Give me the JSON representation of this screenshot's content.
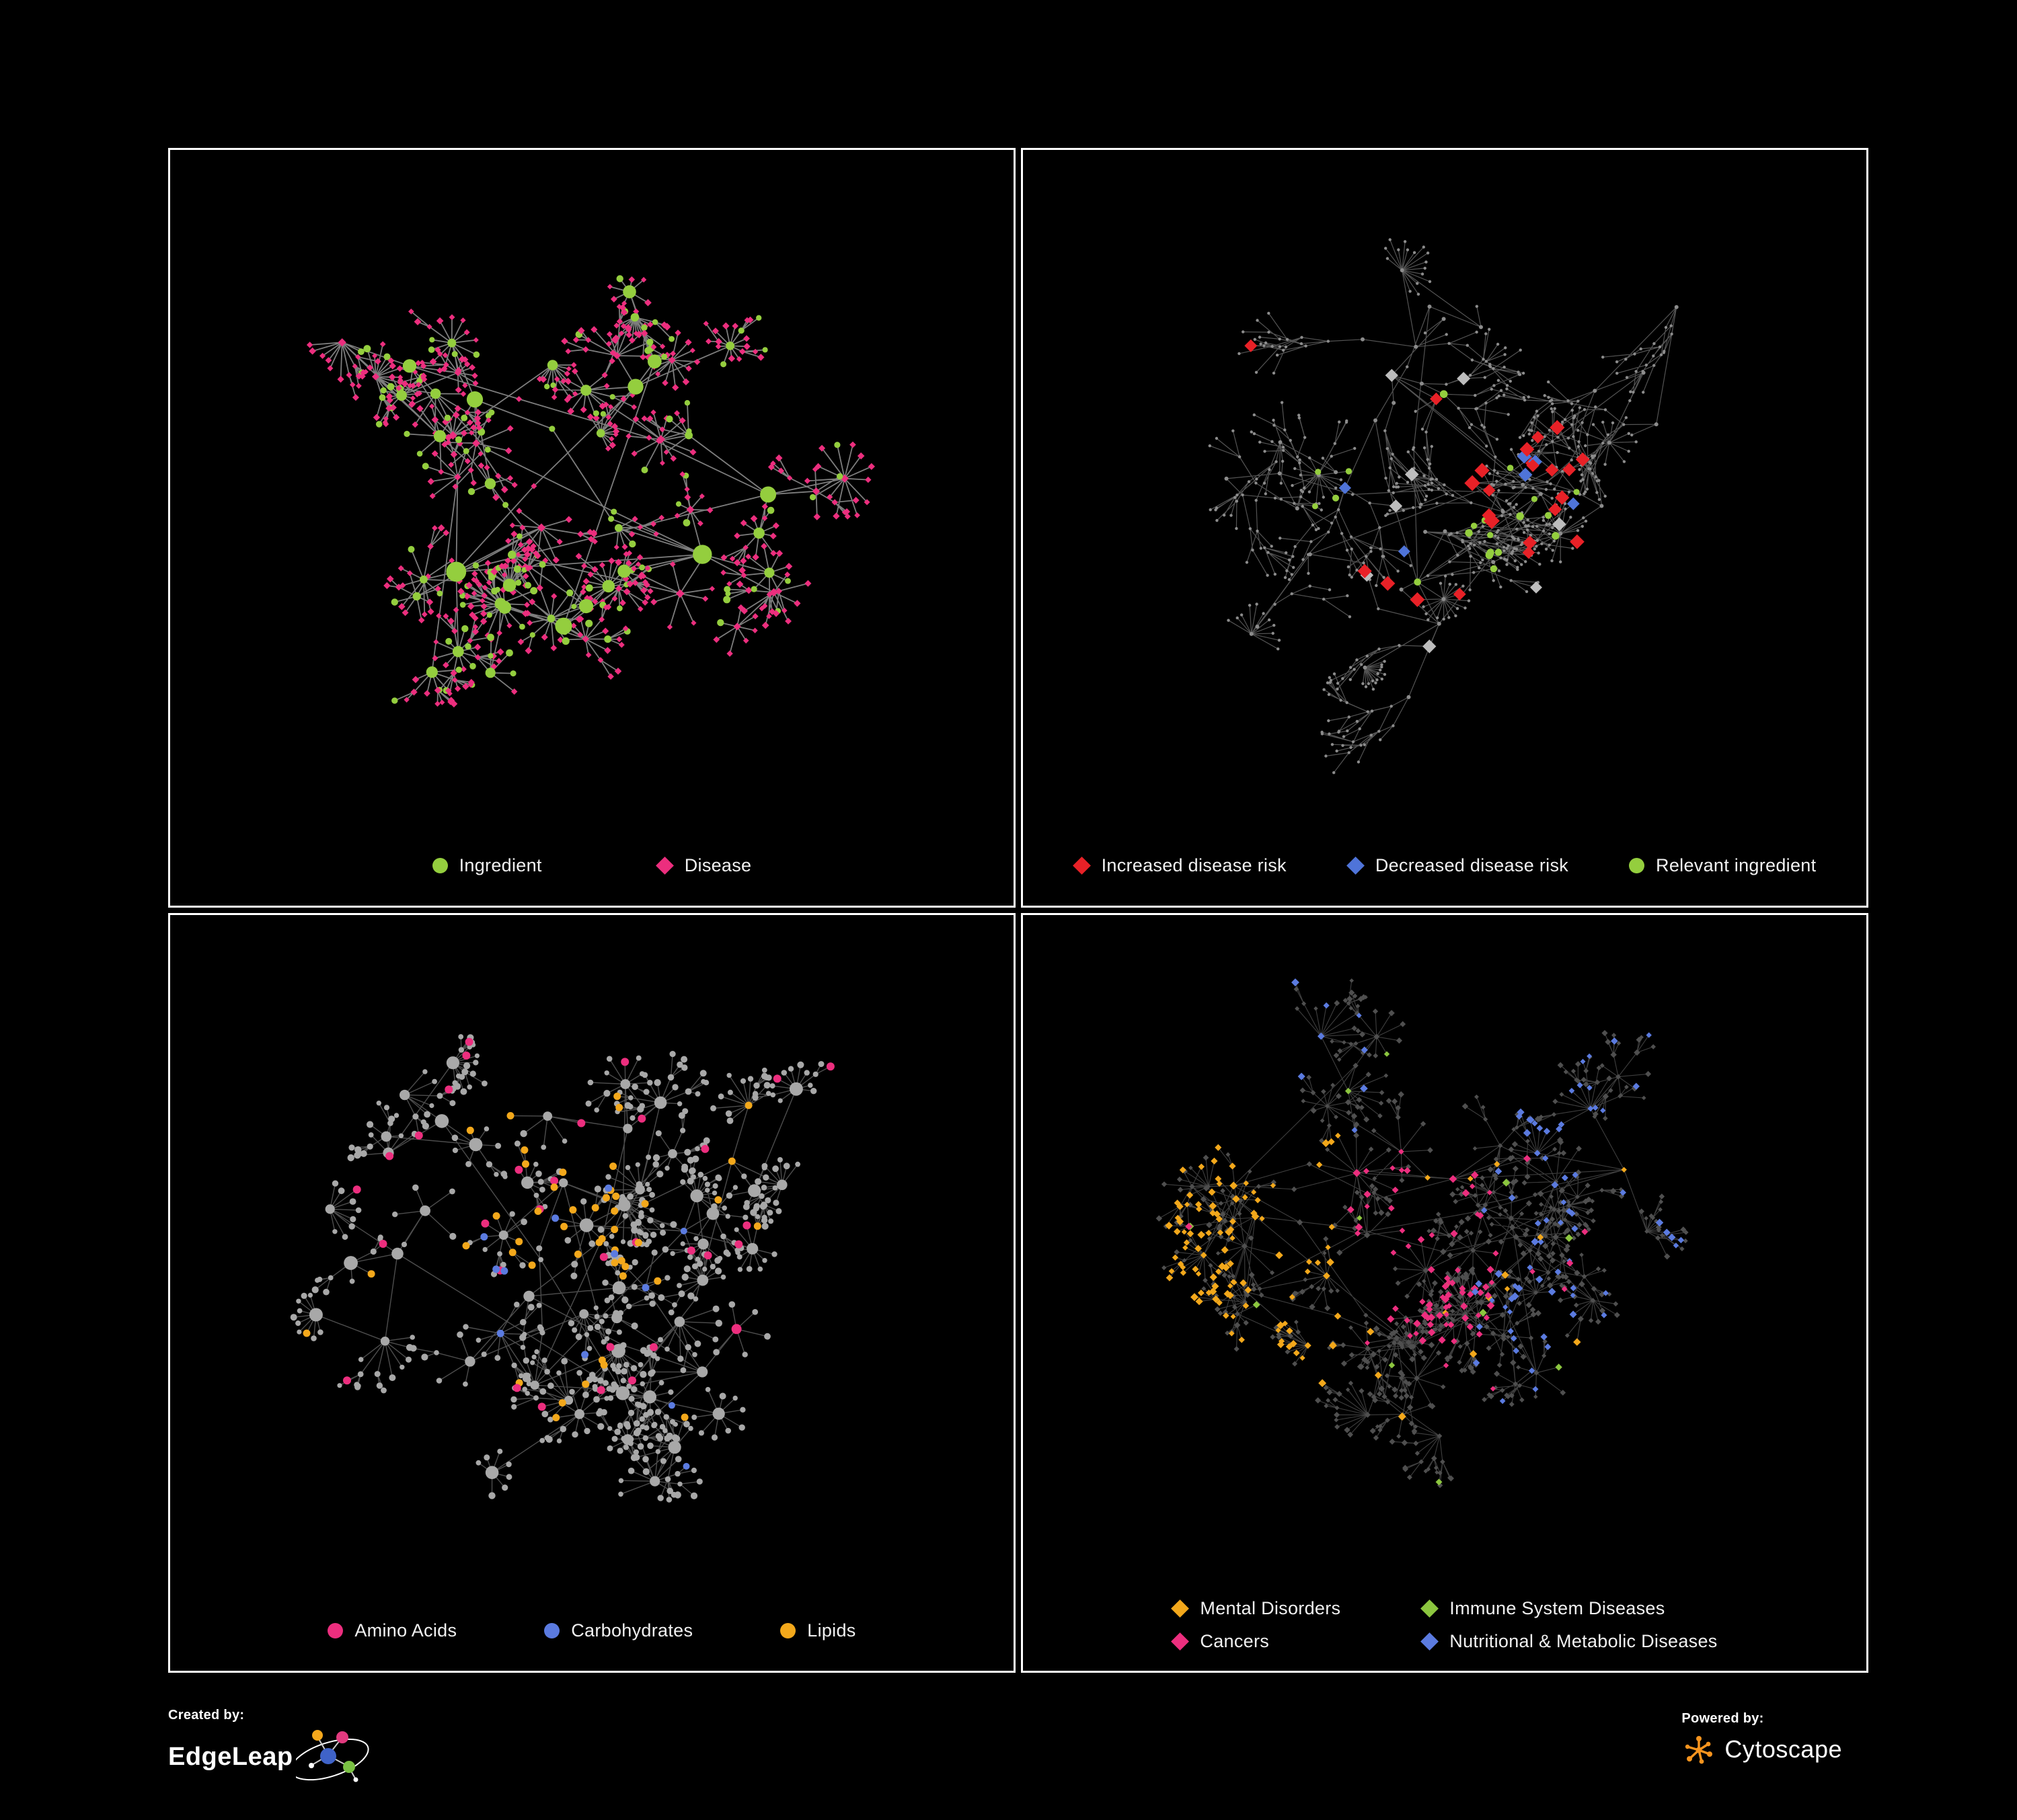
{
  "page": {
    "background": "#000000"
  },
  "panels": [
    {
      "name": "ingredient-disease",
      "style": "ingredients",
      "legend_layout": "row-wide",
      "legend": [
        {
          "label": "Ingredient",
          "shape": "circle",
          "color": "#94ce3e"
        },
        {
          "label": "Disease",
          "shape": "diamond",
          "color": "#ec2e7e"
        }
      ],
      "palette": {
        "primary": "#94ce3e",
        "secondary": "#ec2e7e"
      }
    },
    {
      "name": "disease-risk",
      "style": "risk",
      "legend_layout": "row",
      "legend": [
        {
          "label": "Increased disease risk",
          "shape": "diamond",
          "color": "#e82127"
        },
        {
          "label": "Decreased disease risk",
          "shape": "diamond",
          "color": "#4f74d9"
        },
        {
          "label": "Relevant ingredient",
          "shape": "circle",
          "color": "#94ce3e"
        }
      ],
      "palette": {
        "increased": "#e82127",
        "decreased": "#4f74d9",
        "ingredient": "#94ce3e",
        "neutral": "#bdbdbd",
        "base": "#8c8c8c"
      }
    },
    {
      "name": "nutrients",
      "style": "nutrients",
      "legend_layout": "row-mid",
      "legend": [
        {
          "label": "Amino Acids",
          "shape": "circle",
          "color": "#ec2e7e"
        },
        {
          "label": "Carbohydrates",
          "shape": "circle",
          "color": "#5b7be0"
        },
        {
          "label": "Lipids",
          "shape": "circle",
          "color": "#f3a81b"
        }
      ],
      "palette": {
        "amino": "#ec2e7e",
        "carb": "#5b7be0",
        "lipid": "#f3a81b",
        "base": "#a8a8a8"
      }
    },
    {
      "name": "disease-categories",
      "style": "categories",
      "legend_layout": "grid",
      "legend": [
        {
          "label": "Mental Disorders",
          "shape": "diamond",
          "color": "#f3a81b"
        },
        {
          "label": "Immune System Diseases",
          "shape": "diamond",
          "color": "#8cc63f"
        },
        {
          "label": "Cancers",
          "shape": "diamond",
          "color": "#ec2e7e"
        },
        {
          "label": "Nutritional & Metabolic Diseases",
          "shape": "diamond",
          "color": "#5b7be0"
        }
      ],
      "palette": {
        "mental": "#f3a81b",
        "immune": "#8cc63f",
        "cancer": "#ec2e7e",
        "metabolic": "#5b7be0",
        "base": "#4f4f4f"
      }
    }
  ],
  "footer": {
    "created_by": "Created by:",
    "brand_left": "EdgeLeap",
    "powered_by": "Powered by:",
    "brand_right": "Cytoscape",
    "edgeleap_dot_colors": [
      "#f5a81c",
      "#e23a7f",
      "#3f63c8",
      "#7ac143"
    ],
    "cytoscape_color": "#f7941e"
  }
}
